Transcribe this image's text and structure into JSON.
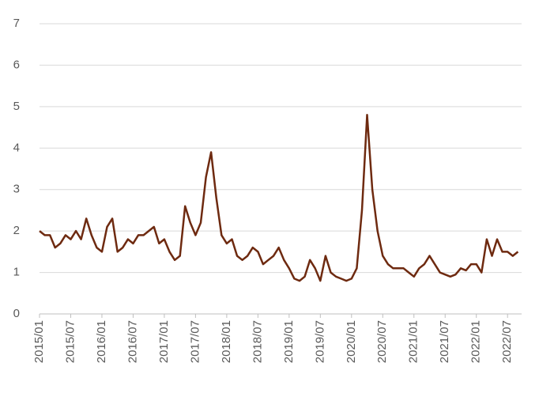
{
  "chart_data": {
    "type": "line",
    "x": [
      "2015/01",
      "2015/02",
      "2015/03",
      "2015/04",
      "2015/05",
      "2015/06",
      "2015/07",
      "2015/08",
      "2015/09",
      "2015/10",
      "2015/11",
      "2015/12",
      "2016/01",
      "2016/02",
      "2016/03",
      "2016/04",
      "2016/05",
      "2016/06",
      "2016/07",
      "2016/08",
      "2016/09",
      "2016/10",
      "2016/11",
      "2016/12",
      "2017/01",
      "2017/02",
      "2017/03",
      "2017/04",
      "2017/05",
      "2017/06",
      "2017/07",
      "2017/08",
      "2017/09",
      "2017/10",
      "2017/11",
      "2017/12",
      "2018/01",
      "2018/02",
      "2018/03",
      "2018/04",
      "2018/05",
      "2018/06",
      "2018/07",
      "2018/08",
      "2018/09",
      "2018/10",
      "2018/11",
      "2018/12",
      "2019/01",
      "2019/02",
      "2019/03",
      "2019/04",
      "2019/05",
      "2019/06",
      "2019/07",
      "2019/08",
      "2019/09",
      "2019/10",
      "2019/11",
      "2019/12",
      "2020/01",
      "2020/02",
      "2020/03",
      "2020/04",
      "2020/05",
      "2020/06",
      "2020/07",
      "2020/08",
      "2020/09",
      "2020/10",
      "2020/11",
      "2020/12",
      "2021/01",
      "2021/02",
      "2021/03",
      "2021/04",
      "2021/05",
      "2021/06",
      "2021/07",
      "2021/08",
      "2021/09",
      "2021/10",
      "2021/11",
      "2021/12",
      "2022/01",
      "2022/02",
      "2022/03",
      "2022/04",
      "2022/05",
      "2022/06",
      "2022/07",
      "2022/08",
      "2022/09"
    ],
    "series": [
      {
        "color": "#6e2a10",
        "values": [
          2.0,
          1.9,
          1.9,
          1.6,
          1.7,
          1.9,
          1.8,
          2.0,
          1.8,
          2.3,
          1.9,
          1.6,
          1.5,
          2.1,
          2.3,
          1.5,
          1.6,
          1.8,
          1.7,
          1.9,
          1.9,
          2.0,
          2.1,
          1.7,
          1.8,
          1.5,
          1.3,
          1.4,
          2.6,
          2.2,
          1.9,
          2.2,
          3.3,
          3.9,
          2.8,
          1.9,
          1.7,
          1.8,
          1.4,
          1.3,
          1.4,
          1.6,
          1.5,
          1.2,
          1.3,
          1.4,
          1.6,
          1.3,
          1.1,
          0.85,
          0.8,
          0.9,
          1.3,
          1.1,
          0.8,
          1.4,
          1.0,
          0.9,
          0.85,
          0.8,
          0.85,
          1.1,
          2.5,
          4.8,
          3.0,
          2.0,
          1.4,
          1.2,
          1.1,
          1.1,
          1.1,
          1.0,
          0.9,
          1.1,
          1.2,
          1.4,
          1.2,
          1.0,
          0.95,
          0.9,
          0.95,
          1.1,
          1.05,
          1.2,
          1.2,
          1.0,
          1.8,
          1.4,
          1.8,
          1.5,
          1.5,
          1.4,
          1.5
        ]
      }
    ],
    "xticks": [
      "2015/01",
      "2015/07",
      "2016/01",
      "2016/07",
      "2017/01",
      "2017/07",
      "2018/01",
      "2018/07",
      "2019/01",
      "2019/07",
      "2020/01",
      "2020/07",
      "2021/01",
      "2021/07",
      "2022/01",
      "2022/07"
    ],
    "ylim": [
      0,
      7
    ],
    "yticks": [
      0,
      1,
      2,
      3,
      4,
      5,
      6,
      7
    ],
    "grid": true
  }
}
